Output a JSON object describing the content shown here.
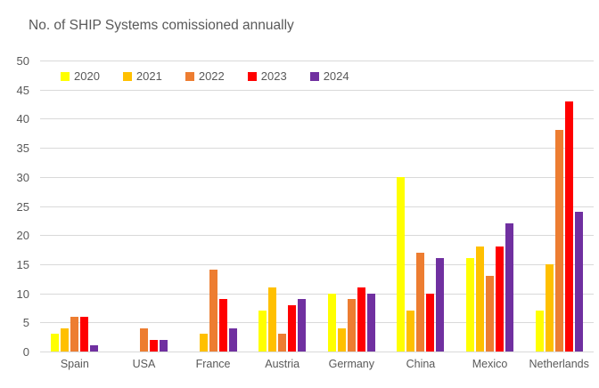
{
  "title": "No. of SHIP Systems comissioned annually",
  "colors": {
    "text": "#595959",
    "gridline": "#d9d9d9",
    "background": "#ffffff"
  },
  "chart_data": {
    "type": "bar",
    "title": "No. of SHIP Systems comissioned annually",
    "categories": [
      "Spain",
      "USA",
      "France",
      "Austria",
      "Germany",
      "China",
      "Mexico",
      "Netherlands"
    ],
    "series": [
      {
        "name": "2020",
        "color": "#FFFF00",
        "values": [
          3,
          0,
          0,
          7,
          10,
          30,
          16,
          7
        ]
      },
      {
        "name": "2021",
        "color": "#FFC000",
        "values": [
          4,
          0,
          3,
          11,
          4,
          7,
          18,
          15
        ]
      },
      {
        "name": "2022",
        "color": "#ED7D31",
        "values": [
          6,
          4,
          14,
          3,
          9,
          17,
          13,
          38
        ]
      },
      {
        "name": "2023",
        "color": "#FF0000",
        "values": [
          6,
          2,
          9,
          8,
          11,
          10,
          18,
          43
        ]
      },
      {
        "name": "2024",
        "color": "#7030A0",
        "values": [
          1,
          2,
          4,
          9,
          10,
          16,
          22,
          24
        ]
      }
    ],
    "ylim": [
      0,
      50
    ],
    "ytick_step": 5,
    "ytick_labels": [
      "0",
      "5",
      "10",
      "15",
      "20",
      "25",
      "30",
      "35",
      "40",
      "45",
      "50"
    ],
    "xlabel": "",
    "ylabel": "",
    "grid": true,
    "legend_position": "top"
  }
}
